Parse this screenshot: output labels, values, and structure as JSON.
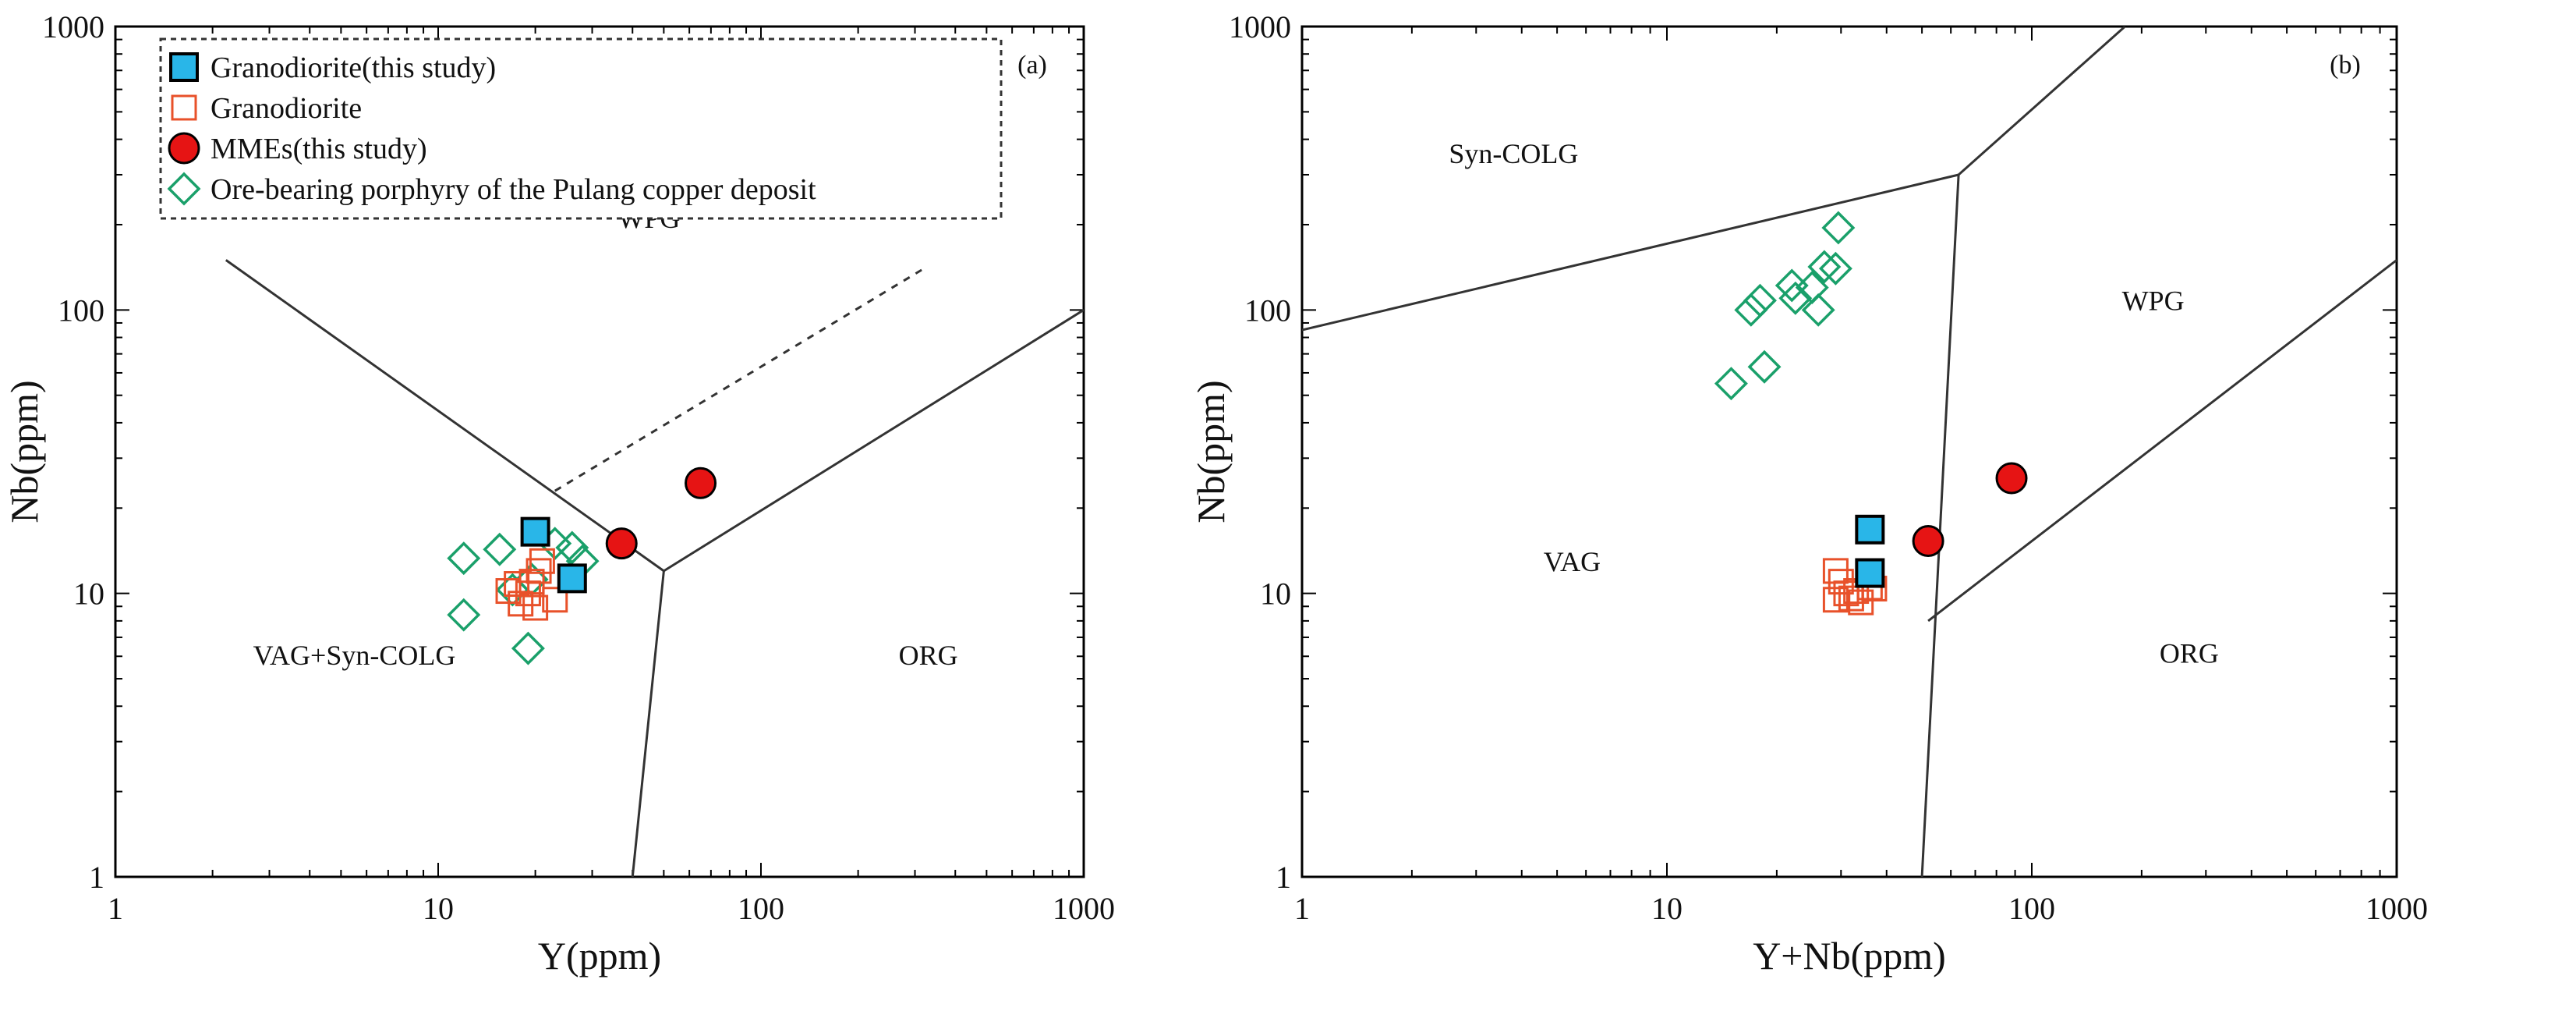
{
  "colors": {
    "granodiorite_this_study_fill": "#29b6e8",
    "granodiorite_stroke": "#e8512a",
    "mme_fill": "#e61414",
    "porphyry_stroke": "#1aa06a",
    "line": "#333333"
  },
  "chart_data": [
    {
      "type": "scatter",
      "panel": "(a)",
      "xlabel": "Y(ppm)",
      "ylabel": "Nb(ppm)",
      "xscale": "log",
      "yscale": "log",
      "xlim": [
        1,
        1000
      ],
      "ylim": [
        1,
        1000
      ],
      "xticks": [
        1,
        10,
        100,
        1000
      ],
      "yticks": [
        1,
        10,
        100,
        1000
      ],
      "xtick_labels": [
        "1",
        "10",
        "100",
        "1000"
      ],
      "ytick_labels": [
        "1",
        "10",
        "100",
        "1000"
      ],
      "legend_position": "top-left",
      "legend": [
        {
          "label": "Granodiorite(this study)",
          "marker": "square-filled"
        },
        {
          "label": "Granodiorite",
          "marker": "square-open"
        },
        {
          "label": "MMEs(this study)",
          "marker": "circle-filled"
        },
        {
          "label": "Ore-bearing porphyry of the Pulang copper deposit",
          "marker": "diamond-open"
        }
      ],
      "fields": [
        {
          "label": "WPG",
          "x": 45,
          "y": 195
        },
        {
          "label": "VAG+Syn-COLG",
          "x": 5.5,
          "y": 5.6
        },
        {
          "label": "ORG",
          "x": 330,
          "y": 5.6
        }
      ],
      "boundaries": [
        {
          "style": "solid",
          "points": [
            [
              2.2,
              150
            ],
            [
              50,
              12
            ]
          ]
        },
        {
          "style": "solid",
          "points": [
            [
              50,
              12
            ],
            [
              40,
              1
            ]
          ]
        },
        {
          "style": "solid",
          "points": [
            [
              50,
              12
            ],
            [
              1000,
              100
            ]
          ]
        },
        {
          "style": "dashed",
          "points": [
            [
              23,
              23
            ],
            [
              320,
              140
            ]
          ]
        }
      ],
      "series": [
        {
          "name": "Granodiorite(this study)",
          "marker": "square-filled",
          "points": [
            [
              20,
              16.5
            ],
            [
              26,
              11.3
            ]
          ]
        },
        {
          "name": "Granodiorite",
          "marker": "square-open",
          "points": [
            [
              16.5,
              10.2
            ],
            [
              17.5,
              10.8
            ],
            [
              18,
              9.2
            ],
            [
              19,
              10
            ],
            [
              19.5,
              11
            ],
            [
              20,
              8.9
            ],
            [
              20.5,
              12
            ],
            [
              21,
              13
            ],
            [
              23,
              9.5
            ]
          ]
        },
        {
          "name": "MMEs(this study)",
          "marker": "circle-filled",
          "points": [
            [
              37,
              15
            ],
            [
              65,
              24.5
            ]
          ]
        },
        {
          "name": "Ore-bearing porphyry of the Pulang copper deposit",
          "marker": "diamond-open",
          "points": [
            [
              12,
              13.3
            ],
            [
              12,
              8.4
            ],
            [
              15.5,
              14.3
            ],
            [
              17,
              10.3
            ],
            [
              19,
              6.4
            ],
            [
              19.5,
              11.2
            ],
            [
              23,
              15
            ],
            [
              26,
              14.5
            ],
            [
              28,
              13
            ]
          ]
        }
      ]
    },
    {
      "type": "scatter",
      "panel": "(b)",
      "xlabel": "Y+Nb(ppm)",
      "ylabel": "Nb(ppm)",
      "xscale": "log",
      "yscale": "log",
      "xlim": [
        1,
        1000
      ],
      "ylim": [
        1,
        1000
      ],
      "xticks": [
        1,
        10,
        100,
        1000
      ],
      "yticks": [
        1,
        10,
        100,
        1000
      ],
      "xtick_labels": [
        "1",
        "10",
        "100",
        "1000"
      ],
      "ytick_labels": [
        "1",
        "10",
        "100",
        "1000"
      ],
      "fields": [
        {
          "label": "Syn-COLG",
          "x": 3.8,
          "y": 330
        },
        {
          "label": "WPG",
          "x": 215,
          "y": 100
        },
        {
          "label": "VAG",
          "x": 5.5,
          "y": 12
        },
        {
          "label": "ORG",
          "x": 270,
          "y": 5.7
        }
      ],
      "boundaries": [
        {
          "style": "solid",
          "points": [
            [
              1,
              85
            ],
            [
              63,
              300
            ]
          ]
        },
        {
          "style": "solid",
          "points": [
            [
              63,
              300
            ],
            [
              180,
              1000
            ]
          ]
        },
        {
          "style": "solid",
          "points": [
            [
              63,
              300
            ],
            [
              50,
              1
            ]
          ]
        },
        {
          "style": "solid",
          "points": [
            [
              52,
              8
            ],
            [
              1000,
              150
            ]
          ]
        }
      ],
      "series": [
        {
          "name": "Granodiorite(this study)",
          "marker": "square-filled",
          "points": [
            [
              36,
              16.8
            ],
            [
              36,
              11.8
            ]
          ]
        },
        {
          "name": "Granodiorite",
          "marker": "square-open",
          "points": [
            [
              29,
              12
            ],
            [
              29,
              9.5
            ],
            [
              30,
              11
            ],
            [
              31,
              10
            ],
            [
              32,
              9.6
            ],
            [
              33,
              10.2
            ],
            [
              34,
              9.3
            ],
            [
              36,
              10.5
            ],
            [
              37,
              10.4
            ]
          ]
        },
        {
          "name": "MMEs(this study)",
          "marker": "circle-filled",
          "points": [
            [
              52,
              15.3
            ],
            [
              88,
              25.5
            ]
          ]
        },
        {
          "name": "Ore-bearing porphyry of the Pulang copper deposit",
          "marker": "diamond-open",
          "points": [
            [
              15,
              55
            ],
            [
              17,
              100
            ],
            [
              18,
              108
            ],
            [
              18.5,
              63
            ],
            [
              22,
              122
            ],
            [
              22.5,
              110
            ],
            [
              25,
              120
            ],
            [
              26,
              100
            ],
            [
              27,
              142
            ],
            [
              29,
              140
            ],
            [
              29.5,
              195
            ]
          ]
        }
      ]
    }
  ]
}
